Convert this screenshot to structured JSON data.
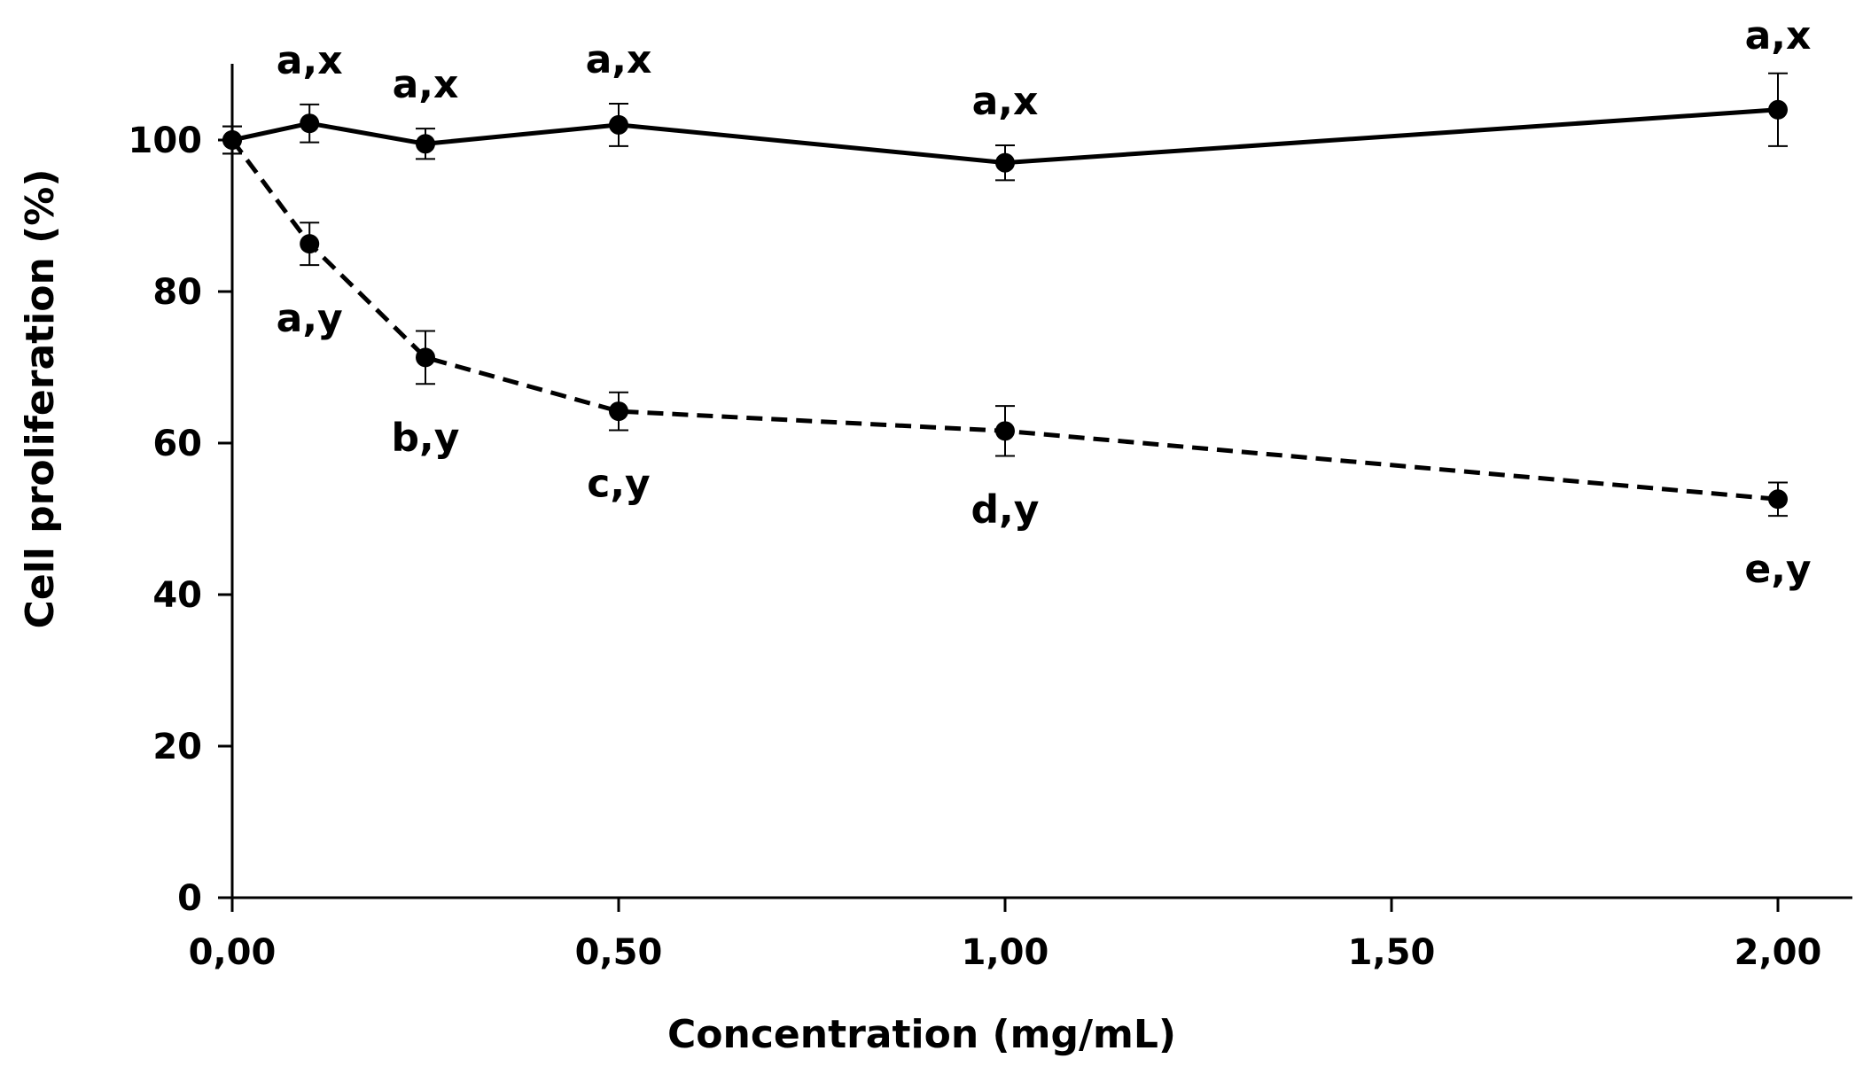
{
  "chart_data": {
    "type": "line",
    "title": "",
    "xlabel": "Concentration (mg/mL)",
    "ylabel": "Cell proliferation (%)",
    "xlim": [
      0,
      2.1
    ],
    "ylim": [
      0,
      110
    ],
    "x_ticks": [
      0,
      0.5,
      1.0,
      1.5,
      2.0
    ],
    "x_tick_labels": [
      "0,00",
      "0,50",
      "1,00",
      "1,50",
      "2,00"
    ],
    "y_ticks": [
      0,
      20,
      40,
      60,
      80,
      100
    ],
    "y_tick_labels": [
      "0",
      "20",
      "40",
      "60",
      "80",
      "100"
    ],
    "grid": false,
    "legend": "none",
    "x": [
      0,
      0.1,
      0.25,
      0.5,
      1.0,
      2.0
    ],
    "series": [
      {
        "name": "solid",
        "line_style": "solid",
        "values": [
          100,
          102.2,
          99.5,
          102.0,
          97.0,
          104.0
        ],
        "errors": [
          1.8,
          2.5,
          2.0,
          2.8,
          2.3,
          4.8
        ],
        "labels": [
          "",
          "a,x",
          "a,x",
          "a,x",
          "a,x",
          "a,x"
        ],
        "label_position": "above"
      },
      {
        "name": "dashed",
        "line_style": "dashed",
        "values": [
          100,
          86.3,
          71.3,
          64.2,
          61.6,
          52.6
        ],
        "errors": [
          1.8,
          2.8,
          3.5,
          2.5,
          3.3,
          2.2
        ],
        "labels": [
          "",
          "a,y",
          "b,y",
          "c,y",
          "d,y",
          "e,y"
        ],
        "label_position": "below"
      }
    ]
  }
}
